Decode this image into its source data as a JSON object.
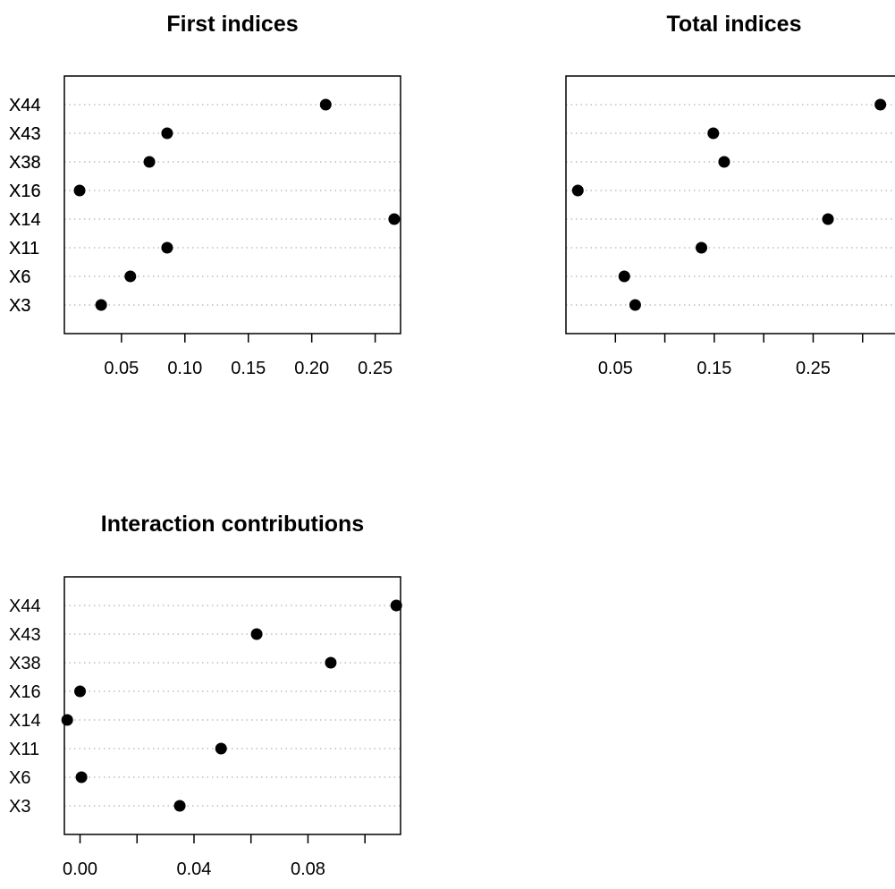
{
  "chart_data": [
    {
      "type": "scatter",
      "title": "First indices",
      "categories": [
        "X3",
        "X6",
        "X11",
        "X14",
        "X16",
        "X38",
        "X43",
        "X44"
      ],
      "values": [
        0.034,
        0.057,
        0.086,
        0.265,
        0.017,
        0.072,
        0.086,
        0.211
      ],
      "xlim": [
        0.005,
        0.27
      ],
      "xticks": [
        0.05,
        0.1,
        0.15,
        0.2,
        0.25
      ],
      "xtick_labels": [
        "0.05",
        "0.10",
        "0.15",
        "0.20",
        "0.25"
      ],
      "grid": "dotted-horizontal"
    },
    {
      "type": "scatter",
      "title": "Total indices",
      "categories": [
        "X3",
        "X6",
        "X11",
        "X14",
        "X16",
        "X38",
        "X43",
        "X44"
      ],
      "values": [
        0.07,
        0.059,
        0.137,
        0.265,
        0.012,
        0.16,
        0.149,
        0.318
      ],
      "xlim": [
        0.0,
        0.34
      ],
      "xticks": [
        0.05,
        0.1,
        0.15,
        0.2,
        0.25,
        0.3
      ],
      "xtick_labels": [
        "0.05",
        "",
        "0.15",
        "",
        "0.25",
        ""
      ],
      "grid": "dotted-horizontal"
    },
    {
      "type": "scatter",
      "title": "Interaction contributions",
      "categories": [
        "X3",
        "X6",
        "X11",
        "X14",
        "X16",
        "X38",
        "X43",
        "X44"
      ],
      "values": [
        0.035,
        0.0005,
        0.0495,
        -0.0045,
        0.0,
        0.088,
        0.062,
        0.111
      ],
      "xlim": [
        -0.0055,
        0.1125
      ],
      "xticks": [
        0.0,
        0.02,
        0.04,
        0.06,
        0.08,
        0.1
      ],
      "xtick_labels": [
        "0.00",
        "",
        "0.04",
        "",
        "0.08",
        ""
      ],
      "grid": "dotted-horizontal"
    }
  ]
}
